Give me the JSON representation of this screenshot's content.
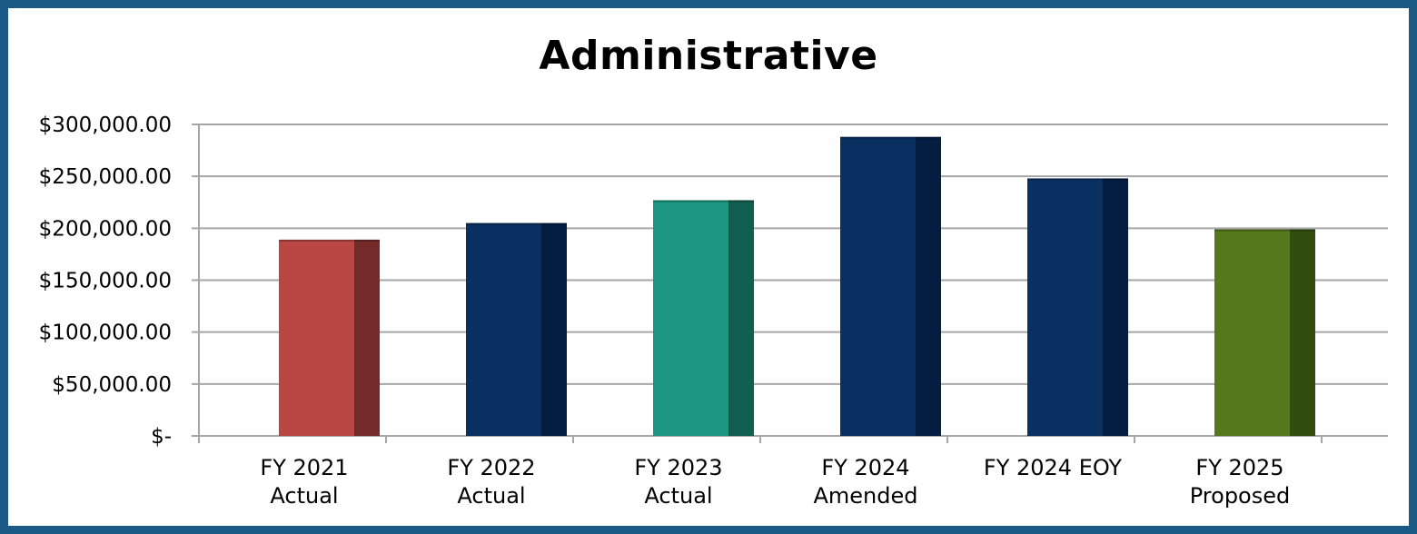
{
  "chart_data": {
    "type": "bar",
    "title": "Administrative",
    "xlabel": "",
    "ylabel": "",
    "ylim": [
      0,
      300000
    ],
    "grid": true,
    "legend": "none",
    "y_tick_values": [
      0,
      50000,
      100000,
      150000,
      200000,
      250000,
      300000
    ],
    "y_tick_labels": [
      "$-",
      "$50,000.00",
      "$100,000.00",
      "$150,000.00",
      "$200,000.00",
      "$250,000.00",
      "$300,000.00"
    ],
    "categories": [
      [
        "FY 2021",
        "Actual"
      ],
      [
        "FY 2022",
        "Actual"
      ],
      [
        "FY 2023",
        "Actual"
      ],
      [
        "FY 2024",
        "Amended"
      ],
      [
        "FY 2024 EOY"
      ],
      [
        "FY 2025",
        "Proposed"
      ]
    ],
    "values": [
      189000,
      205000,
      227000,
      288000,
      248000,
      199000
    ],
    "colors": [
      {
        "front": "#b84643",
        "side": "#742a29"
      },
      {
        "front": "#0a3062",
        "side": "#041d40"
      },
      {
        "front": "#1b9680",
        "side": "#105f50"
      },
      {
        "front": "#0a3062",
        "side": "#041d40"
      },
      {
        "front": "#0a3062",
        "side": "#041d40"
      },
      {
        "front": "#54781b",
        "side": "#334d10"
      }
    ]
  },
  "style": {
    "frame_color": "#1c5a86",
    "grid_color": "#a6a6a6"
  }
}
